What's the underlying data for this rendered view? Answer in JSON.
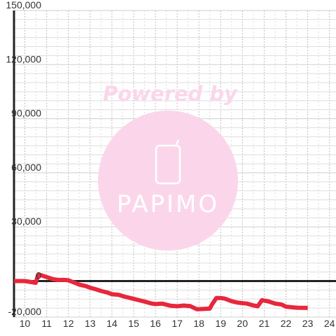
{
  "chart_data": {
    "type": "line",
    "title": "",
    "xlabel": "",
    "ylabel": "",
    "xlim": [
      9.5,
      24.3
    ],
    "ylim": [
      -20000,
      150000
    ],
    "x_ticks": [
      10,
      11,
      12,
      13,
      14,
      15,
      16,
      17,
      18,
      19,
      20,
      21,
      22,
      23,
      24
    ],
    "x_tick_labels": [
      "10",
      "11",
      "12",
      "13",
      "14",
      "15",
      "16",
      "17",
      "18",
      "19",
      "20",
      "21",
      "22",
      "23",
      "24"
    ],
    "y_ticks": [
      -20000,
      0,
      30000,
      60000,
      90000,
      120000,
      150000
    ],
    "y_tick_labels": [
      "-20,000",
      "0",
      "30,000",
      "60,000",
      "90,000",
      "120,000",
      "150,000"
    ],
    "grid": true,
    "legend": "none",
    "series": [
      {
        "color": "#e8273c",
        "x": [
          9.5,
          10.0,
          10.5,
          10.6,
          10.7,
          11.0,
          11.3,
          11.5,
          11.8,
          12.0,
          12.3,
          12.5,
          12.8,
          13.0,
          13.3,
          13.5,
          13.8,
          14.0,
          14.3,
          14.6,
          14.9,
          15.2,
          15.5,
          15.8,
          16.0,
          16.3,
          16.7,
          17.0,
          17.3,
          17.6,
          17.9,
          18.2,
          18.5,
          18.6,
          18.8,
          19.0,
          19.2,
          19.5,
          19.8,
          20.2,
          20.5,
          20.7,
          20.9,
          21.2,
          21.5,
          21.8,
          22.0,
          22.5,
          23.0
        ],
        "values": [
          0,
          0,
          -1000,
          3200,
          3400,
          2200,
          1000,
          600,
          600,
          400,
          -1000,
          -2000,
          -2800,
          -3700,
          -4700,
          -5500,
          -6400,
          -7300,
          -7600,
          -8700,
          -9600,
          -10500,
          -11400,
          -12400,
          -12800,
          -12500,
          -13700,
          -14000,
          -13600,
          -13900,
          -15600,
          -15500,
          -15300,
          -13000,
          -9400,
          -9400,
          -9800,
          -11200,
          -12000,
          -12500,
          -13500,
          -14000,
          -10600,
          -11300,
          -12500,
          -13000,
          -14200,
          -14800,
          -14900
        ]
      }
    ]
  },
  "watermark": {
    "powered_by": "Powered by",
    "brand": "PAPIMO",
    "color": "#fbd6ea"
  }
}
